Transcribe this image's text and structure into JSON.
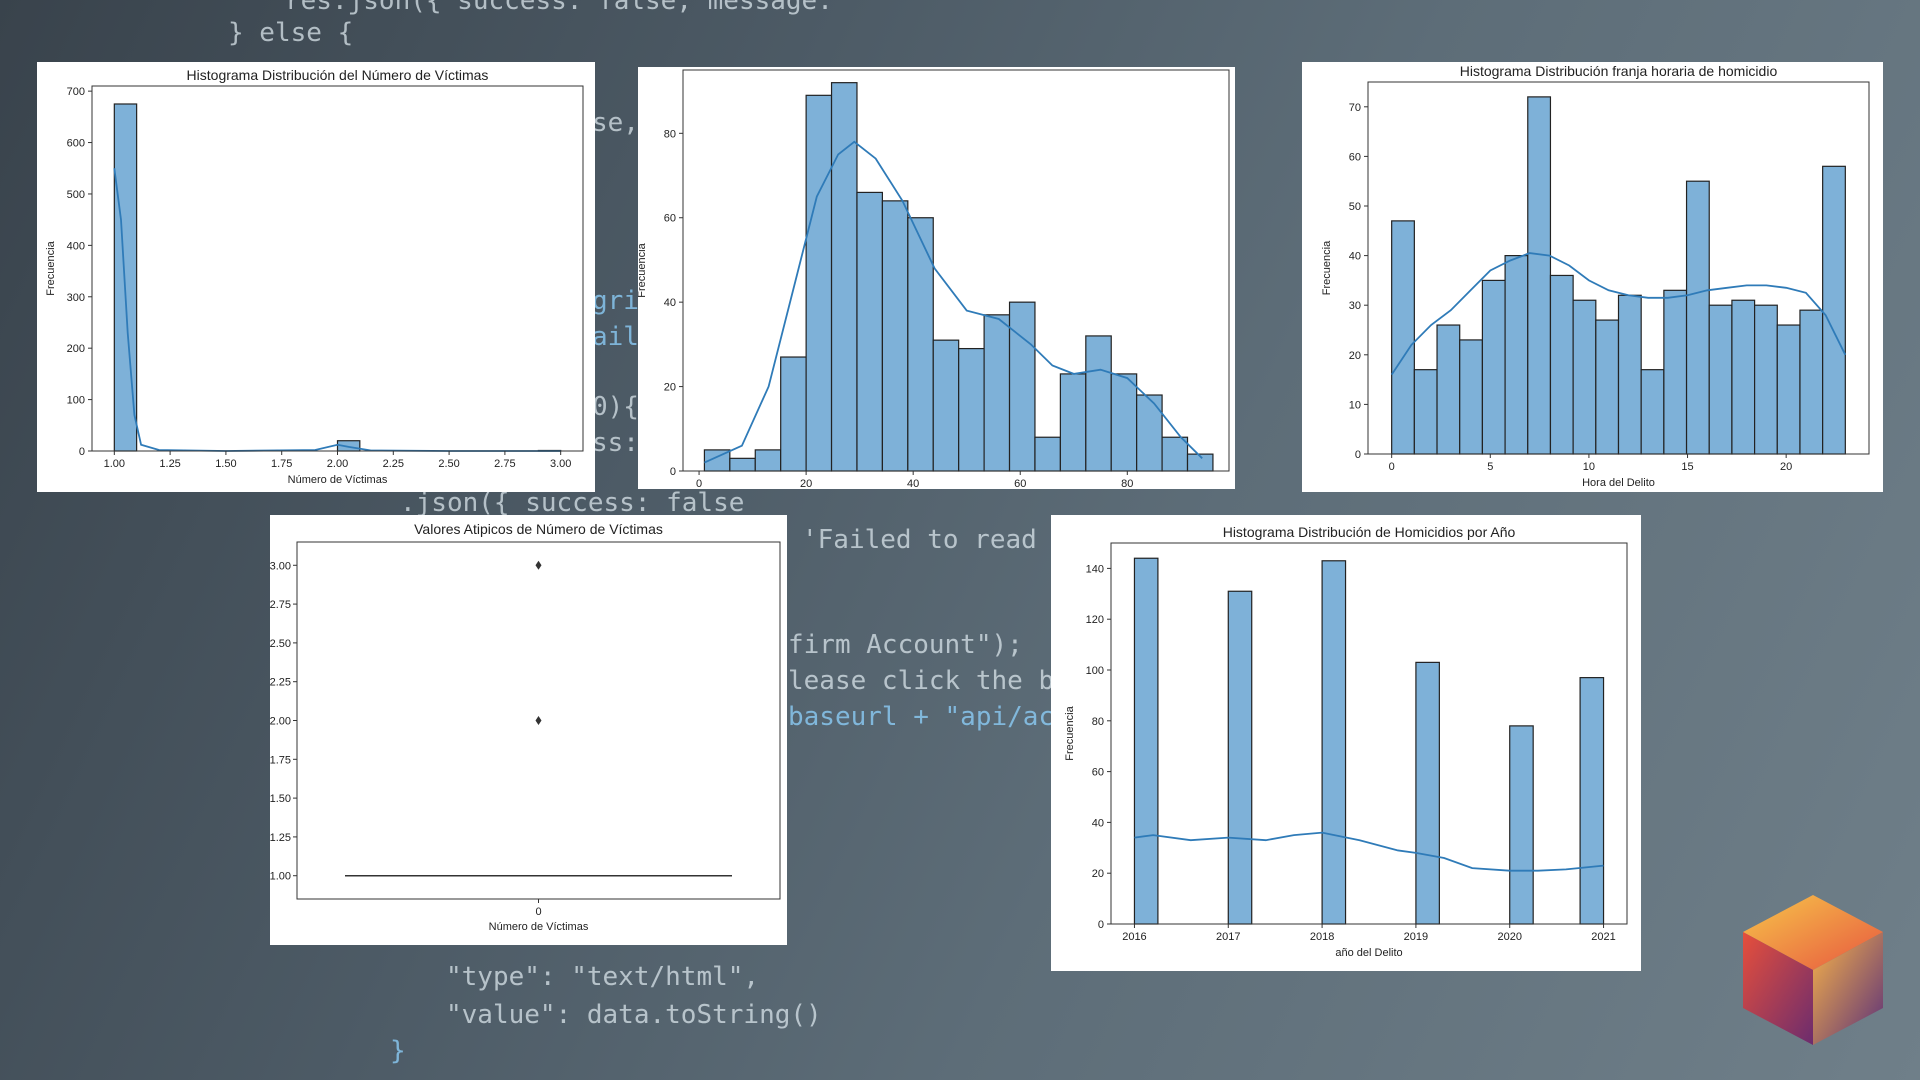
{
  "background_code": [
    {
      "text": "res.json({ success: false, message:",
      "color": "light"
    },
    {
      "text": "} else {",
      "color": "light"
    },
    {
      "text": "se,",
      "color": "light"
    },
    {
      "text": "grid",
      "color": "blue"
    },
    {
      "text": "ailt",
      "color": "blue"
    },
    {
      "text": "0){",
      "color": "light"
    },
    {
      "text": "ss:",
      "color": "light"
    },
    {
      "text": ".json({ success: false",
      "color": "light"
    },
    {
      "text": "'Failed to read email",
      "color": "light"
    },
    {
      "text": "firm Account\");",
      "color": "light"
    },
    {
      "text": "lease click the button",
      "color": "light"
    },
    {
      "text": "baseurl + \"api/account",
      "color": "blue"
    },
    {
      "text": "\"type\": \"text/html\",",
      "color": "light"
    },
    {
      "text": "\"value\": data.toString()",
      "color": "light"
    },
    {
      "text": "}",
      "color": "blue"
    }
  ],
  "chart_data": [
    {
      "id": "victimas_hist",
      "type": "bar",
      "title": "Histograma Distribución del Número de Víctimas",
      "xlabel": "Número de Víctimas",
      "ylabel": "Frecuencia",
      "xlim": [
        0.9,
        3.1
      ],
      "ylim": [
        0,
        710
      ],
      "xticks": [
        1.0,
        1.25,
        1.5,
        1.75,
        2.0,
        2.25,
        2.5,
        2.75,
        3.0
      ],
      "xtick_labels": [
        "1.00",
        "1.25",
        "1.50",
        "1.75",
        "2.00",
        "2.25",
        "2.50",
        "2.75",
        "3.00"
      ],
      "yticks": [
        0,
        100,
        200,
        300,
        400,
        500,
        600,
        700
      ],
      "bin_edges": [
        1.0,
        1.1,
        1.2,
        1.3,
        1.4,
        1.5,
        1.6,
        1.7,
        1.8,
        1.9,
        2.0,
        2.1,
        2.2,
        2.3,
        2.4,
        2.5,
        2.6,
        2.7,
        2.8,
        2.9,
        3.0
      ],
      "values": [
        675,
        0,
        0,
        0,
        0,
        0,
        0,
        0,
        0,
        0,
        20,
        0,
        0,
        0,
        0,
        0,
        0,
        0,
        0,
        1
      ],
      "kde": [
        [
          1.0,
          550
        ],
        [
          1.03,
          450
        ],
        [
          1.06,
          230
        ],
        [
          1.09,
          70
        ],
        [
          1.12,
          12
        ],
        [
          1.2,
          2
        ],
        [
          1.5,
          0
        ],
        [
          1.9,
          2
        ],
        [
          2.0,
          12
        ],
        [
          2.05,
          8
        ],
        [
          2.15,
          1
        ],
        [
          2.5,
          0
        ],
        [
          3.0,
          0
        ]
      ],
      "bar_color": "#7eb1d8",
      "line_color": "#2f7bb8"
    },
    {
      "id": "edad_hist",
      "type": "bar",
      "title": "",
      "xlabel": "",
      "ylabel": "Frecuencia",
      "xlim": [
        -3,
        99
      ],
      "ylim": [
        0,
        95
      ],
      "xticks": [
        0,
        20,
        40,
        60,
        80
      ],
      "xtick_labels": [
        "0",
        "20",
        "40",
        "60",
        "80"
      ],
      "yticks": [
        0,
        20,
        40,
        60,
        80
      ],
      "bin_edges": [
        1,
        5.75,
        10.5,
        15.25,
        20,
        24.75,
        29.5,
        34.25,
        39,
        43.75,
        48.5,
        53.25,
        58,
        62.75,
        67.5,
        72.25,
        77,
        81.75,
        86.5,
        91.25,
        96
      ],
      "values": [
        5,
        3,
        5,
        27,
        89,
        92,
        66,
        64,
        60,
        31,
        29,
        37,
        40,
        8,
        23,
        32,
        23,
        18,
        8,
        4
      ],
      "kde": [
        [
          1,
          2
        ],
        [
          8,
          6
        ],
        [
          13,
          20
        ],
        [
          18,
          45
        ],
        [
          22,
          65
        ],
        [
          26,
          75
        ],
        [
          29,
          78
        ],
        [
          33,
          74
        ],
        [
          38,
          64
        ],
        [
          44,
          48
        ],
        [
          50,
          38
        ],
        [
          56,
          36
        ],
        [
          62,
          30
        ],
        [
          66,
          25
        ],
        [
          70,
          23
        ],
        [
          75,
          24
        ],
        [
          80,
          22
        ],
        [
          85,
          16
        ],
        [
          90,
          8
        ],
        [
          94,
          3
        ]
      ],
      "bar_color": "#7eb1d8",
      "line_color": "#2f7bb8"
    },
    {
      "id": "franja_hist",
      "type": "bar",
      "title": "Histograma Distribución franja horaria de homicidio",
      "xlabel": "Hora del Delito",
      "ylabel": "Frecuencia",
      "xlim": [
        -1.2,
        24.2
      ],
      "ylim": [
        0,
        75
      ],
      "xticks": [
        0,
        5,
        10,
        15,
        20
      ],
      "xtick_labels": [
        "0",
        "5",
        "10",
        "15",
        "20"
      ],
      "yticks": [
        0,
        10,
        20,
        30,
        40,
        50,
        60,
        70
      ],
      "bin_edges": [
        0,
        1.15,
        2.3,
        3.45,
        4.6,
        5.75,
        6.9,
        8.05,
        9.2,
        10.35,
        11.5,
        12.65,
        13.8,
        14.95,
        16.1,
        17.25,
        18.4,
        19.55,
        20.7,
        21.85,
        23
      ],
      "values": [
        47,
        17,
        26,
        23,
        35,
        40,
        72,
        36,
        31,
        27,
        32,
        17,
        33,
        55,
        30,
        31,
        30,
        26,
        29,
        58
      ],
      "kde": [
        [
          0,
          16
        ],
        [
          1,
          22
        ],
        [
          2,
          26
        ],
        [
          3,
          29
        ],
        [
          4,
          33
        ],
        [
          5,
          37
        ],
        [
          6,
          39
        ],
        [
          7,
          40.5
        ],
        [
          8,
          40
        ],
        [
          9,
          38
        ],
        [
          10,
          35
        ],
        [
          11,
          33
        ],
        [
          12,
          32
        ],
        [
          13,
          31.5
        ],
        [
          14,
          31.5
        ],
        [
          15,
          32
        ],
        [
          16,
          33
        ],
        [
          17,
          33.5
        ],
        [
          18,
          34
        ],
        [
          19,
          34
        ],
        [
          20,
          33.5
        ],
        [
          21,
          32.5
        ],
        [
          22,
          28
        ],
        [
          23,
          20
        ]
      ],
      "bar_color": "#7eb1d8",
      "line_color": "#2f7bb8"
    },
    {
      "id": "atipicos_box",
      "type": "scatter",
      "title": "Valores Atipicos de Número de Víctimas",
      "xlabel": "Número de Víctimas",
      "ylabel": "",
      "ylim": [
        0.85,
        3.15
      ],
      "yticks": [
        1.0,
        1.25,
        1.5,
        1.75,
        2.0,
        2.25,
        2.5,
        2.75,
        3.0
      ],
      "ytick_labels": [
        "1.00",
        "1.25",
        "1.50",
        "1.75",
        "2.00",
        "2.25",
        "2.50",
        "2.75",
        "3.00"
      ],
      "xtick_labels": [
        "0"
      ],
      "box_median": 1.0,
      "outliers": [
        2.0,
        3.0
      ]
    },
    {
      "id": "anio_hist",
      "type": "bar",
      "title": "Histograma Distribución de Homicidios por Año",
      "xlabel": "año del Delito",
      "ylabel": "Frecuencia",
      "xlim": [
        2015.75,
        2021.25
      ],
      "ylim": [
        0,
        150
      ],
      "xticks": [
        2016,
        2017,
        2018,
        2019,
        2020,
        2021
      ],
      "xtick_labels": [
        "2016",
        "2017",
        "2018",
        "2019",
        "2020",
        "2021"
      ],
      "yticks": [
        0,
        20,
        40,
        60,
        80,
        100,
        120,
        140
      ],
      "bin_edges": [
        2016,
        2016.25,
        2016.5,
        2016.75,
        2017,
        2017.25,
        2017.5,
        2017.75,
        2018,
        2018.25,
        2018.5,
        2018.75,
        2019,
        2019.25,
        2019.5,
        2019.75,
        2020,
        2020.25,
        2020.5,
        2020.75,
        2021
      ],
      "values": [
        144,
        0,
        0,
        0,
        131,
        0,
        0,
        0,
        143,
        0,
        0,
        0,
        103,
        0,
        0,
        0,
        78,
        0,
        0,
        97
      ],
      "kde": [
        [
          2016,
          34
        ],
        [
          2016.2,
          35
        ],
        [
          2016.6,
          33
        ],
        [
          2017,
          34
        ],
        [
          2017.4,
          33
        ],
        [
          2017.7,
          35
        ],
        [
          2018,
          36
        ],
        [
          2018.4,
          33
        ],
        [
          2018.8,
          29
        ],
        [
          2019,
          28
        ],
        [
          2019.3,
          26
        ],
        [
          2019.6,
          22
        ],
        [
          2020,
          21
        ],
        [
          2020.3,
          21
        ],
        [
          2020.6,
          21.5
        ],
        [
          2021,
          23
        ]
      ],
      "bar_color": "#7eb1d8",
      "line_color": "#2f7bb8"
    }
  ]
}
